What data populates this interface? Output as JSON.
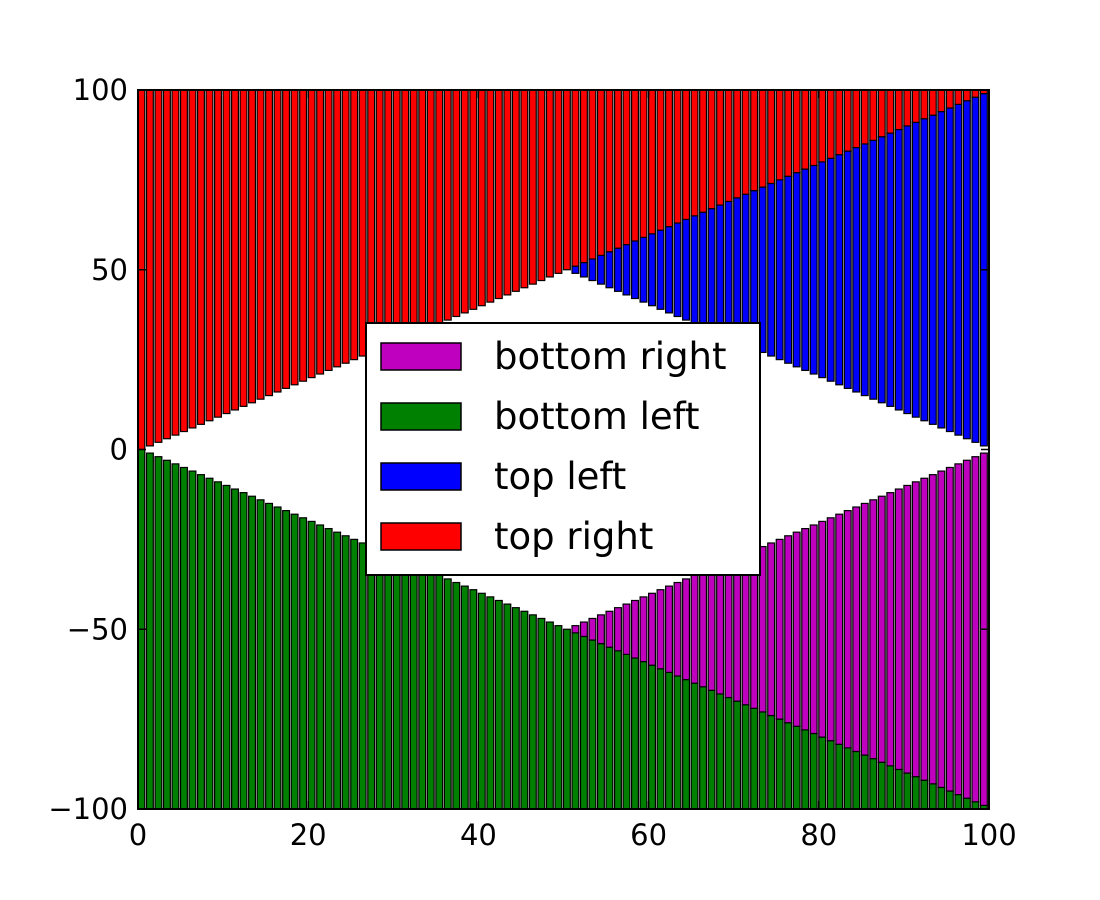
{
  "chart_data": {
    "type": "bar",
    "stacked": true,
    "bar_width": 0.8,
    "xlim": [
      0,
      100
    ],
    "ylim": [
      -100,
      100
    ],
    "x_ticks": [
      0,
      20,
      40,
      60,
      80,
      100
    ],
    "x_tick_labels": [
      "0",
      "20",
      "40",
      "60",
      "80",
      "100"
    ],
    "y_ticks": [
      -100,
      -50,
      0,
      50,
      100
    ],
    "y_tick_labels": [
      "−100",
      "−50",
      "0",
      "50",
      "100"
    ],
    "x": {
      "start": 0,
      "stop": 100,
      "step": 1
    },
    "grid": false,
    "legend_position": "center",
    "series": [
      {
        "name": "top left",
        "color": "#0000ff",
        "rule": "for x < 50: bottom = x, top = 100 - x (empty); for x >= 50: bottom = 100 - x, top = x",
        "fn": "top_left"
      },
      {
        "name": "top right",
        "color": "#ff0000",
        "rule": "for x < 50: bottom = x, top = 100; for x >= 50: bottom = x, top = 100",
        "fn": "top_right"
      },
      {
        "name": "bottom left",
        "color": "#008000",
        "rule": "bottom = -100, top = -x",
        "fn": "bottom_left"
      },
      {
        "name": "bottom right",
        "color": "#bf00bf",
        "rule": "for x >= 50: bottom = -x, top = x - 100",
        "fn": "bottom_right"
      }
    ],
    "legend": [
      {
        "label": "bottom right",
        "color": "#bf00bf"
      },
      {
        "label": "bottom left",
        "color": "#008000"
      },
      {
        "label": "top left",
        "color": "#0000ff"
      },
      {
        "label": "top right",
        "color": "#ff0000"
      }
    ]
  }
}
